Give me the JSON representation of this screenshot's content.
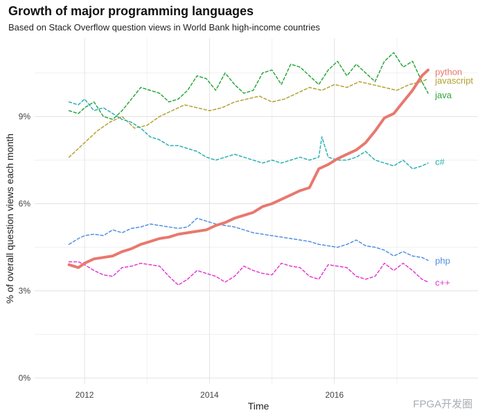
{
  "header": {
    "title": "Growth of major programming languages",
    "subtitle": "Based on Stack Overflow question views in World Bank high-income countries"
  },
  "watermark": "FPGA开发圈",
  "chart_data": {
    "type": "line",
    "title": "Growth of major programming languages",
    "subtitle": "Based on Stack Overflow question views in World Bank high-income countries",
    "xlabel": "Time",
    "ylabel": "% of overall question views each month",
    "xlim": [
      2011.2,
      2018.3
    ],
    "ylim": [
      -0.2,
      11.7
    ],
    "x_ticks": [
      2012,
      2014,
      2016
    ],
    "x_tick_labels": [
      "2012",
      "2014",
      "2016"
    ],
    "y_ticks": [
      0,
      3,
      6,
      9
    ],
    "y_tick_labels": [
      "0%",
      "3%",
      "6%",
      "9%"
    ],
    "grid": true,
    "legend": "direct labels at line ends",
    "series": [
      {
        "name": "python",
        "color": "#e8786e",
        "width": 4,
        "dash": "",
        "x": [
          2011.75,
          2011.9,
          2012.0,
          2012.15,
          2012.3,
          2012.45,
          2012.6,
          2012.75,
          2012.9,
          2013.05,
          2013.2,
          2013.35,
          2013.5,
          2013.65,
          2013.8,
          2013.95,
          2014.1,
          2014.25,
          2014.4,
          2014.55,
          2014.7,
          2014.85,
          2015.0,
          2015.15,
          2015.3,
          2015.45,
          2015.6,
          2015.75,
          2015.9,
          2016.05,
          2016.2,
          2016.35,
          2016.5,
          2016.65,
          2016.8,
          2016.95,
          2017.1,
          2017.25,
          2017.4,
          2017.5
        ],
        "values": [
          3.9,
          3.8,
          3.95,
          4.1,
          4.15,
          4.2,
          4.35,
          4.45,
          4.6,
          4.7,
          4.8,
          4.85,
          4.95,
          5.0,
          5.05,
          5.1,
          5.25,
          5.35,
          5.5,
          5.6,
          5.7,
          5.9,
          6.0,
          6.15,
          6.3,
          6.45,
          6.55,
          7.2,
          7.35,
          7.55,
          7.7,
          7.85,
          8.1,
          8.5,
          8.95,
          9.1,
          9.5,
          9.9,
          10.4,
          10.6
        ]
      },
      {
        "name": "javascript",
        "color": "#b3a12e",
        "width": 1.5,
        "dash": "4,3",
        "x": [
          2011.75,
          2011.9,
          2012.0,
          2012.2,
          2012.4,
          2012.6,
          2012.8,
          2013.0,
          2013.2,
          2013.4,
          2013.6,
          2013.8,
          2014.0,
          2014.2,
          2014.4,
          2014.6,
          2014.8,
          2015.0,
          2015.2,
          2015.4,
          2015.6,
          2015.8,
          2016.0,
          2016.2,
          2016.4,
          2016.6,
          2016.8,
          2017.0,
          2017.2,
          2017.4,
          2017.5
        ],
        "values": [
          7.6,
          7.9,
          8.1,
          8.5,
          8.8,
          9.0,
          8.6,
          8.7,
          9.0,
          9.2,
          9.4,
          9.3,
          9.2,
          9.3,
          9.5,
          9.6,
          9.7,
          9.5,
          9.6,
          9.8,
          10.0,
          9.9,
          10.1,
          10.0,
          10.2,
          10.1,
          10.0,
          9.9,
          10.1,
          10.2,
          10.3
        ]
      },
      {
        "name": "java",
        "color": "#2aa63a",
        "width": 1.5,
        "dash": "4,3",
        "x": [
          2011.75,
          2011.9,
          2012.0,
          2012.15,
          2012.3,
          2012.45,
          2012.6,
          2012.75,
          2012.9,
          2013.05,
          2013.2,
          2013.35,
          2013.5,
          2013.65,
          2013.8,
          2013.95,
          2014.1,
          2014.25,
          2014.4,
          2014.55,
          2014.7,
          2014.85,
          2015.0,
          2015.15,
          2015.3,
          2015.45,
          2015.6,
          2015.75,
          2015.9,
          2016.05,
          2016.2,
          2016.35,
          2016.5,
          2016.65,
          2016.8,
          2016.95,
          2017.1,
          2017.25,
          2017.4,
          2017.5
        ],
        "values": [
          9.2,
          9.1,
          9.3,
          9.5,
          9.0,
          8.9,
          9.2,
          9.6,
          10.0,
          9.9,
          9.8,
          9.5,
          9.6,
          9.9,
          10.4,
          10.3,
          9.9,
          10.5,
          10.1,
          9.8,
          9.9,
          10.5,
          10.6,
          10.1,
          10.8,
          10.7,
          10.4,
          10.1,
          10.6,
          10.9,
          10.4,
          10.8,
          10.5,
          10.2,
          10.9,
          11.2,
          10.7,
          10.9,
          10.2,
          9.8
        ]
      },
      {
        "name": "c#",
        "color": "#29b0b3",
        "width": 1.5,
        "dash": "4,3",
        "x": [
          2011.75,
          2011.9,
          2012.0,
          2012.15,
          2012.3,
          2012.45,
          2012.6,
          2012.75,
          2012.9,
          2013.05,
          2013.2,
          2013.35,
          2013.5,
          2013.65,
          2013.8,
          2013.95,
          2014.1,
          2014.25,
          2014.4,
          2014.55,
          2014.7,
          2014.85,
          2015.0,
          2015.15,
          2015.3,
          2015.45,
          2015.6,
          2015.75,
          2015.8,
          2015.9,
          2016.05,
          2016.2,
          2016.35,
          2016.5,
          2016.65,
          2016.8,
          2016.95,
          2017.1,
          2017.25,
          2017.4,
          2017.5
        ],
        "values": [
          9.5,
          9.4,
          9.6,
          9.2,
          9.3,
          9.1,
          8.9,
          8.8,
          8.6,
          8.3,
          8.2,
          8.0,
          8.0,
          7.9,
          7.8,
          7.6,
          7.5,
          7.6,
          7.7,
          7.6,
          7.5,
          7.4,
          7.5,
          7.4,
          7.5,
          7.6,
          7.5,
          7.6,
          8.3,
          7.6,
          7.5,
          7.5,
          7.6,
          7.8,
          7.5,
          7.4,
          7.3,
          7.5,
          7.2,
          7.3,
          7.4
        ]
      },
      {
        "name": "php",
        "color": "#4f8fe0",
        "width": 1.5,
        "dash": "4,3",
        "x": [
          2011.75,
          2011.9,
          2012.0,
          2012.15,
          2012.3,
          2012.45,
          2012.6,
          2012.75,
          2012.9,
          2013.05,
          2013.2,
          2013.35,
          2013.5,
          2013.65,
          2013.8,
          2013.95,
          2014.1,
          2014.25,
          2014.4,
          2014.55,
          2014.7,
          2014.85,
          2015.0,
          2015.15,
          2015.3,
          2015.45,
          2015.6,
          2015.75,
          2015.9,
          2016.05,
          2016.2,
          2016.35,
          2016.5,
          2016.65,
          2016.8,
          2016.95,
          2017.1,
          2017.25,
          2017.4,
          2017.5
        ],
        "values": [
          4.6,
          4.8,
          4.9,
          4.95,
          4.9,
          5.1,
          5.0,
          5.15,
          5.2,
          5.3,
          5.25,
          5.2,
          5.15,
          5.2,
          5.5,
          5.4,
          5.3,
          5.25,
          5.2,
          5.1,
          5.0,
          4.95,
          4.9,
          4.85,
          4.8,
          4.75,
          4.7,
          4.6,
          4.55,
          4.5,
          4.6,
          4.75,
          4.55,
          4.5,
          4.4,
          4.2,
          4.35,
          4.2,
          4.15,
          4.05
        ]
      },
      {
        "name": "c++",
        "color": "#e23ad6",
        "width": 1.5,
        "dash": "4,3",
        "x": [
          2011.75,
          2011.9,
          2012.0,
          2012.15,
          2012.3,
          2012.45,
          2012.6,
          2012.75,
          2012.9,
          2013.05,
          2013.2,
          2013.35,
          2013.5,
          2013.65,
          2013.8,
          2013.95,
          2014.1,
          2014.25,
          2014.4,
          2014.55,
          2014.7,
          2014.85,
          2015.0,
          2015.15,
          2015.3,
          2015.45,
          2015.6,
          2015.75,
          2015.9,
          2016.05,
          2016.2,
          2016.35,
          2016.5,
          2016.65,
          2016.8,
          2016.95,
          2017.1,
          2017.25,
          2017.4,
          2017.5
        ],
        "values": [
          4.0,
          4.0,
          3.9,
          3.7,
          3.55,
          3.5,
          3.8,
          3.85,
          3.95,
          3.9,
          3.85,
          3.5,
          3.2,
          3.4,
          3.7,
          3.6,
          3.5,
          3.3,
          3.5,
          3.85,
          3.7,
          3.6,
          3.55,
          3.95,
          3.85,
          3.8,
          3.5,
          3.4,
          3.9,
          3.85,
          3.8,
          3.5,
          3.4,
          3.5,
          3.95,
          3.7,
          3.95,
          3.7,
          3.4,
          3.3
        ]
      }
    ],
    "end_labels": [
      {
        "text": "python",
        "y": 10.55,
        "color": "#e8786e"
      },
      {
        "text": "javascript",
        "y": 10.25,
        "color": "#b3a12e"
      },
      {
        "text": "java",
        "y": 9.75,
        "color": "#2aa63a"
      },
      {
        "text": "c#",
        "y": 7.45,
        "color": "#29b0b3"
      },
      {
        "text": "php",
        "y": 4.05,
        "color": "#4f8fe0"
      },
      {
        "text": "c++",
        "y": 3.3,
        "color": "#e23ad6"
      }
    ]
  }
}
